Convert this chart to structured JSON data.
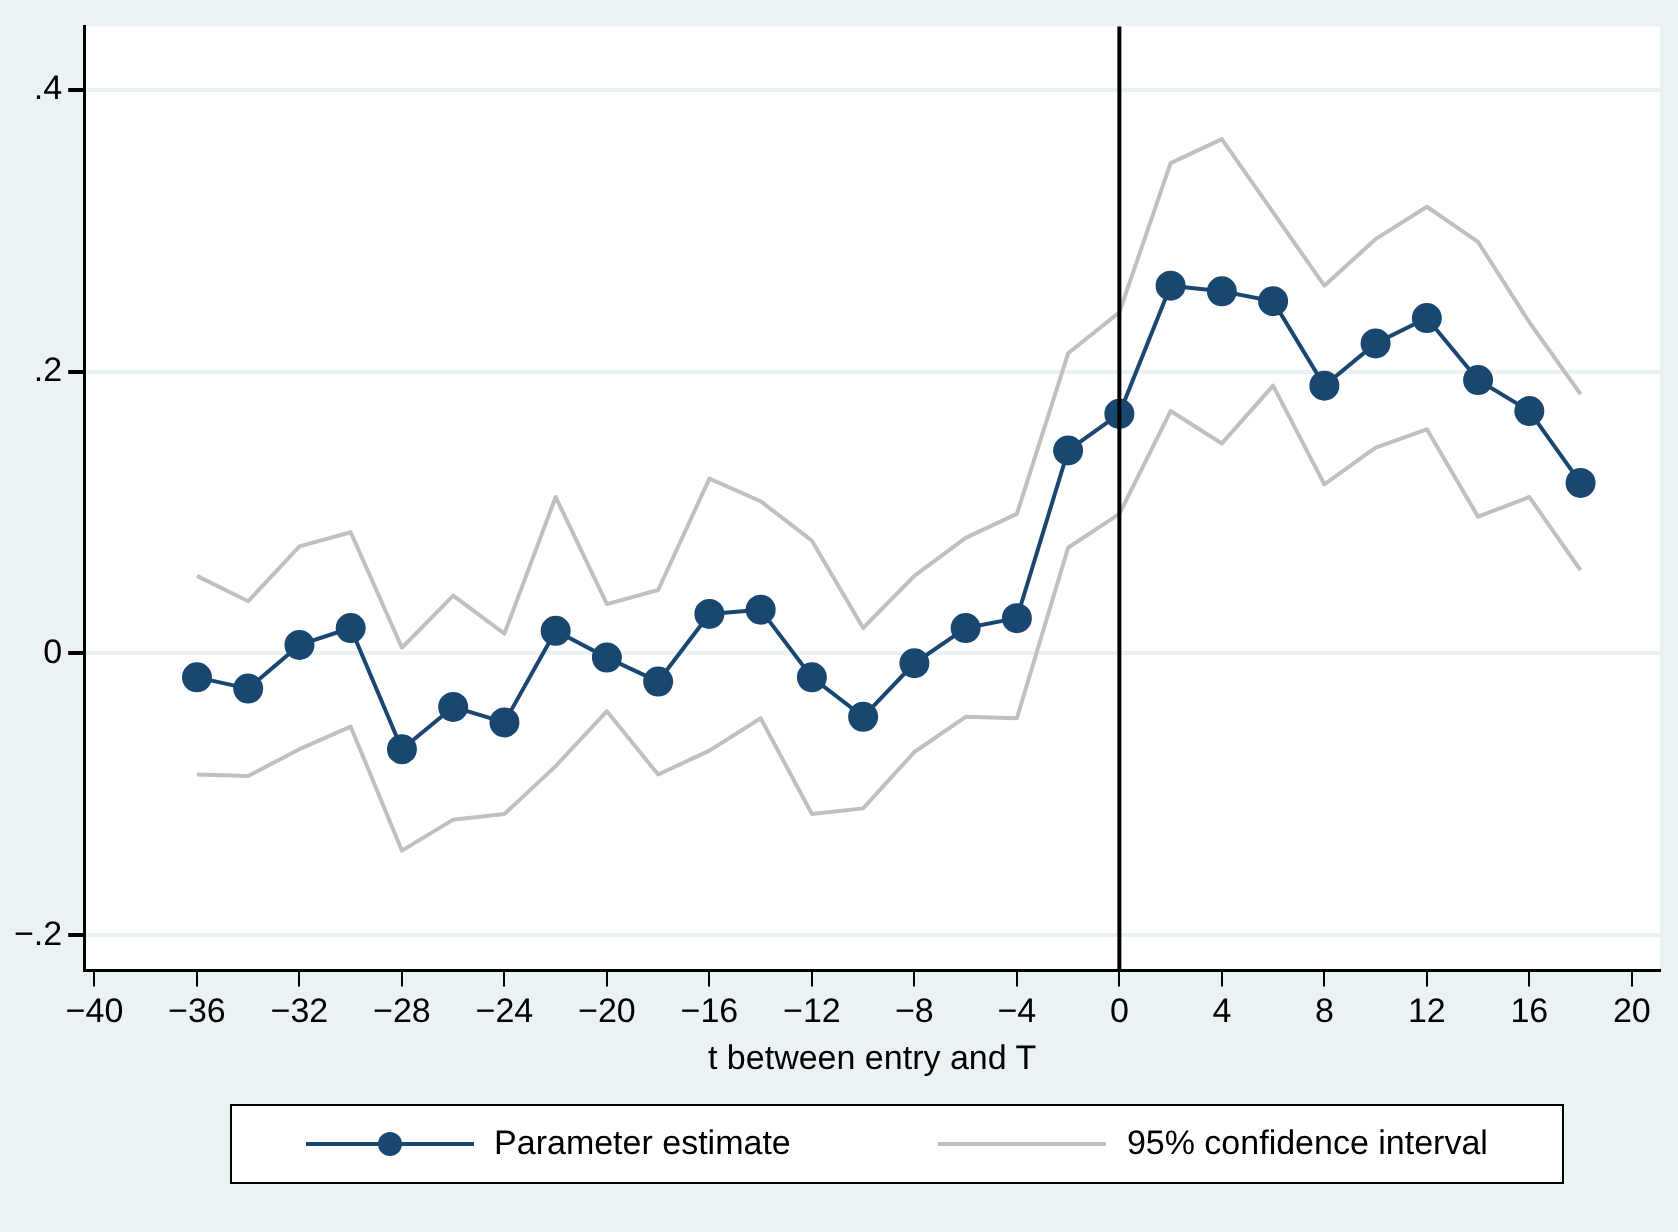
{
  "chart_data": {
    "type": "line",
    "xlabel": "t between entry and T",
    "x": [
      -36,
      -34,
      -32,
      -30,
      -28,
      -26,
      -24,
      -22,
      -20,
      -18,
      -16,
      -14,
      -12,
      -10,
      -8,
      -6,
      -4,
      -2,
      0,
      2,
      4,
      6,
      8,
      10,
      12,
      14,
      16,
      18
    ],
    "series": [
      {
        "name": "Parameter estimate",
        "color": "#1a476f",
        "marker": "circle",
        "values": [
          -0.017,
          -0.025,
          0.006,
          0.018,
          -0.068,
          -0.038,
          -0.049,
          0.016,
          -0.003,
          -0.02,
          0.028,
          0.031,
          -0.017,
          -0.045,
          -0.007,
          0.018,
          0.025,
          0.144,
          0.17,
          0.261,
          0.257,
          0.25,
          0.19,
          0.22,
          0.238,
          0.194,
          0.172,
          0.121
        ]
      },
      {
        "name": "95% confidence interval",
        "color": "#c0c0c0",
        "marker": "none",
        "values": [
          0.055,
          0.037,
          0.076,
          0.086,
          0.004,
          0.041,
          0.014,
          0.111,
          0.035,
          0.045,
          0.124,
          0.108,
          0.08,
          0.018,
          0.055,
          0.082,
          0.099,
          0.213,
          0.242,
          0.348,
          0.365,
          0.313,
          0.261,
          0.294,
          0.317,
          0.292,
          0.235,
          0.184
        ]
      },
      {
        "color": "#c0c0c0",
        "marker": "none",
        "values": [
          -0.086,
          -0.087,
          -0.068,
          -0.052,
          -0.14,
          -0.118,
          -0.114,
          -0.08,
          -0.041,
          -0.086,
          -0.069,
          -0.046,
          -0.114,
          -0.11,
          -0.07,
          -0.045,
          -0.046,
          0.075,
          0.099,
          0.172,
          0.149,
          0.19,
          0.12,
          0.146,
          0.159,
          0.097,
          0.111,
          0.059
        ]
      }
    ],
    "xlim": [
      -40.4,
      21.1
    ],
    "xticks": [
      {
        "value": -40,
        "label": "−40"
      },
      {
        "value": -36,
        "label": "−36"
      },
      {
        "value": -32,
        "label": "−32"
      },
      {
        "value": -28,
        "label": "−28"
      },
      {
        "value": -24,
        "label": "−24"
      },
      {
        "value": -20,
        "label": "−20"
      },
      {
        "value": -16,
        "label": "−16"
      },
      {
        "value": -12,
        "label": "−12"
      },
      {
        "value": -8,
        "label": "−8"
      },
      {
        "value": -4,
        "label": "−4"
      },
      0,
      4,
      8,
      12,
      16,
      20
    ],
    "ylim": [
      -0.225,
      0.445
    ],
    "yticks": [
      {
        "value": -0.2,
        "label": "−.2"
      },
      0,
      {
        "value": 0.2,
        "label": ".2"
      },
      {
        "value": 0.4,
        "label": ".4"
      }
    ],
    "ref_lines": [
      {
        "axis": "x",
        "value": 0,
        "color": "#000000"
      }
    ],
    "grid": "y",
    "legend": "bottom",
    "line_style": "solid"
  }
}
